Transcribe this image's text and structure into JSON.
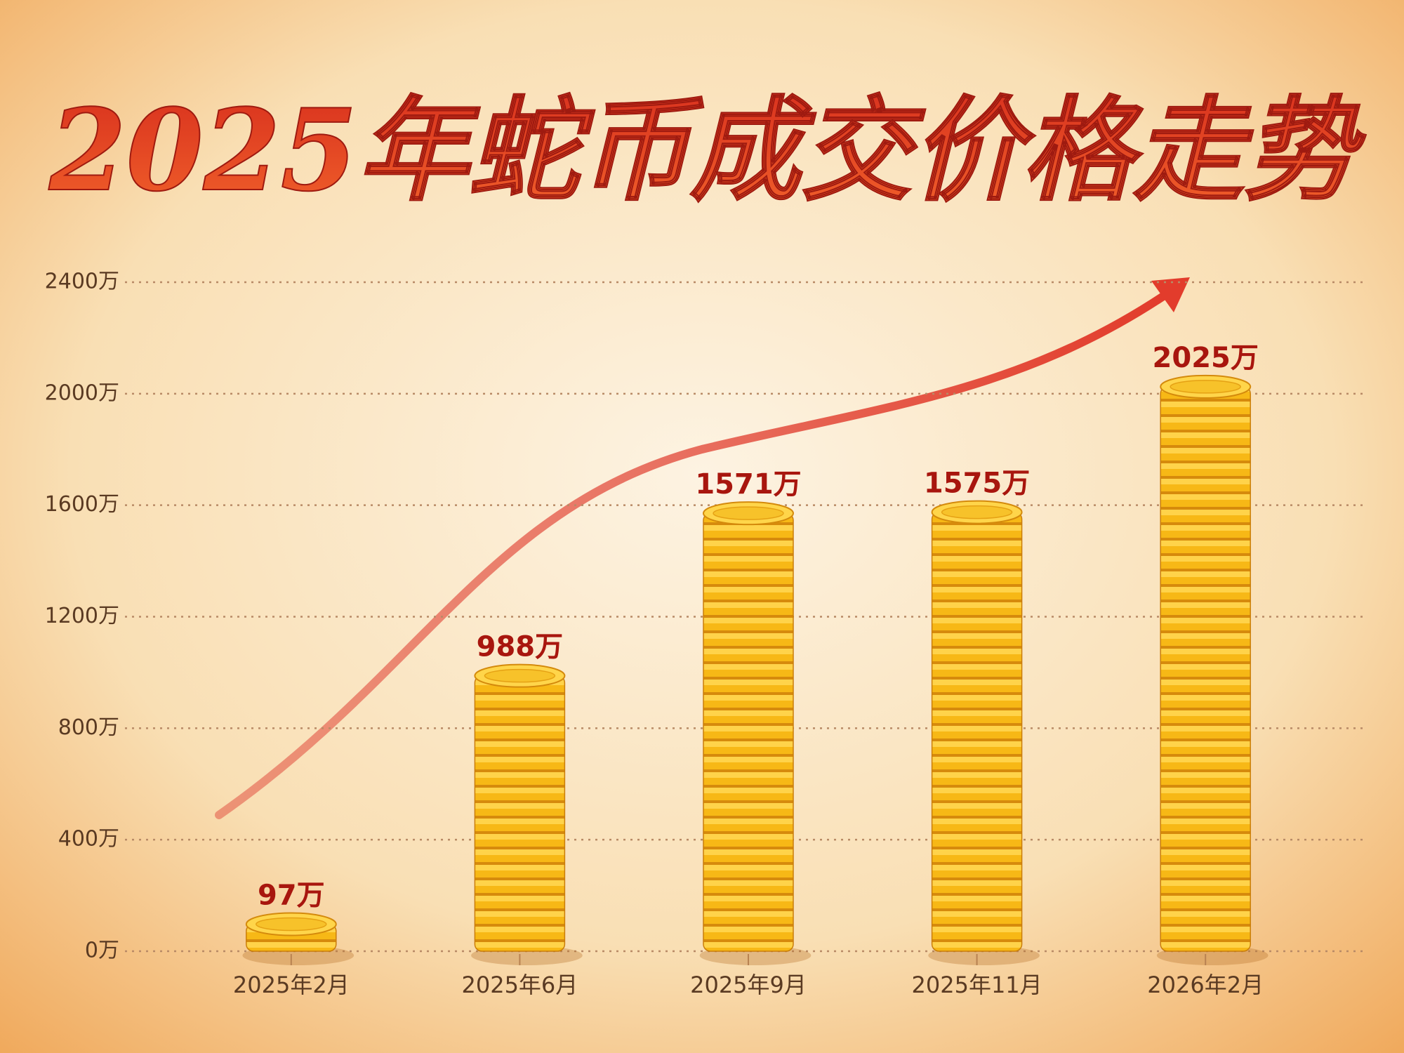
{
  "chart_data": {
    "type": "bar",
    "title": "2025年蛇币成交价格走势",
    "categories": [
      "2025年2月",
      "2025年6月",
      "2025年9月",
      "2025年11月",
      "2026年2月"
    ],
    "values": [
      97,
      988,
      1571,
      1575,
      2025
    ],
    "value_labels": [
      "97万",
      "988万",
      "1571万",
      "1575万",
      "2025万"
    ],
    "color": "#f5b418",
    "ylim": [
      0,
      2400
    ],
    "yticks": [
      {
        "value": 0,
        "label": "0万"
      },
      {
        "value": 400,
        "label": "400万"
      },
      {
        "value": 800,
        "label": "800万"
      },
      {
        "value": 1200,
        "label": "1200万"
      },
      {
        "value": 1600,
        "label": "1600万"
      },
      {
        "value": 2000,
        "label": "2000万"
      },
      {
        "value": 2400,
        "label": "2400万"
      }
    ],
    "grid": true
  }
}
